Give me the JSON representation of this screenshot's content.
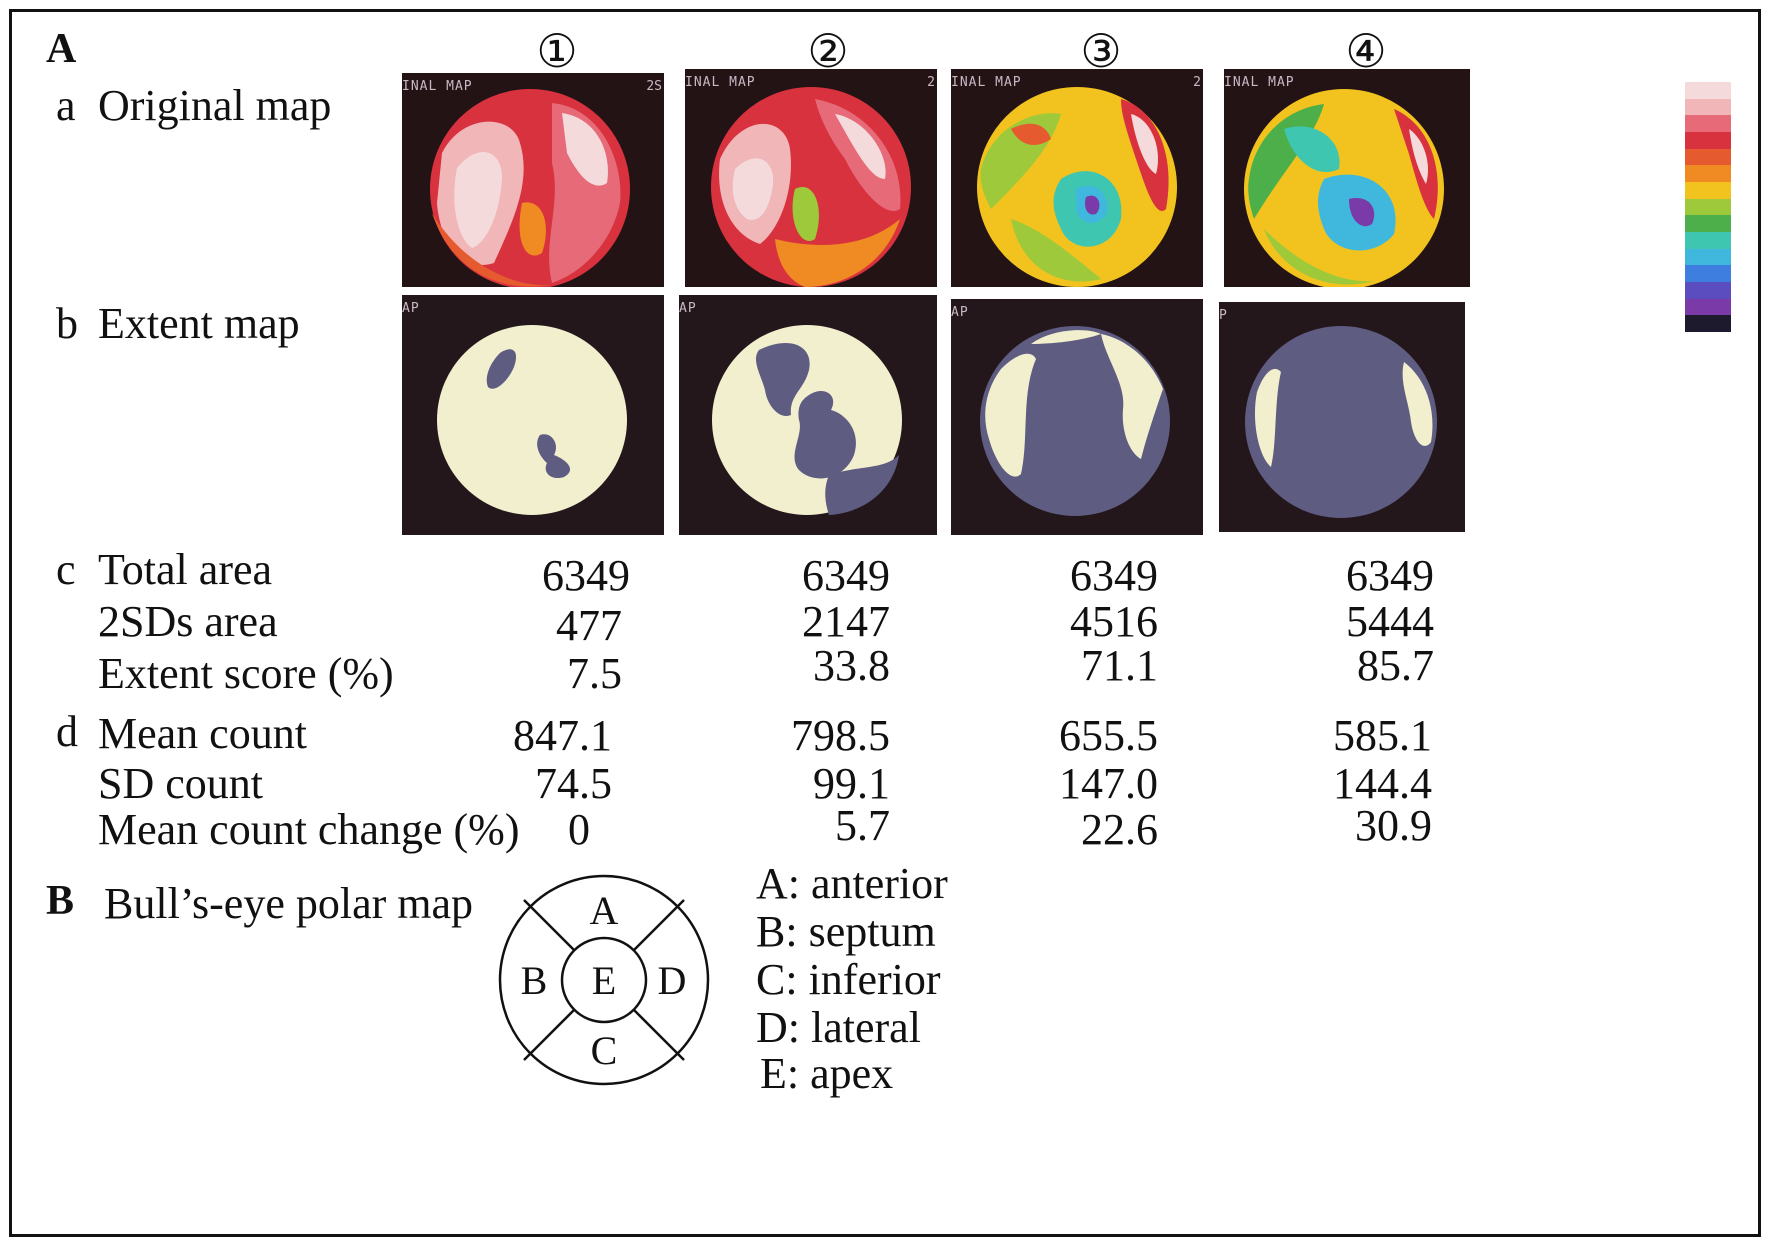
{
  "panels": {
    "A": "A",
    "B": "B"
  },
  "column_headers": [
    "①",
    "②",
    "③",
    "④"
  ],
  "rows": {
    "a": {
      "letter": "a",
      "label": "Original map"
    },
    "b": {
      "letter": "b",
      "label": "Extent map"
    }
  },
  "tile_texts": {
    "original": [
      "INAL MAP",
      "INAL MAP",
      "INAL MAP",
      "INAL MAP"
    ],
    "original_corner": [
      "2S",
      "2",
      "2",
      ""
    ],
    "extent": [
      "AP",
      "AP",
      "AP",
      "P"
    ]
  },
  "section_c": {
    "letter": "c",
    "rows": [
      {
        "label": "Total area",
        "values": [
          "6349",
          "6349",
          "6349",
          "6349"
        ]
      },
      {
        "label": "2SDs  area",
        "values": [
          "477",
          "2147",
          "4516",
          "5444"
        ]
      },
      {
        "label": "Extent score (%)",
        "values": [
          "7.5",
          "33.8",
          "71.1",
          "85.7"
        ]
      }
    ]
  },
  "section_d": {
    "letter": "d",
    "rows": [
      {
        "label": "Mean count",
        "values": [
          "847.1",
          "798.5",
          "655.5",
          "585.1"
        ]
      },
      {
        "label": "SD count",
        "values": [
          "74.5",
          "99.1",
          "147.0",
          "144.4"
        ]
      },
      {
        "label": "Mean count change (%)",
        "values": [
          "0",
          "5.7",
          "22.6",
          "30.9"
        ]
      }
    ]
  },
  "bullseye": {
    "title": "Bull’s-eye polar map",
    "segments": {
      "anterior": "A",
      "septum": "B",
      "inferior": "C",
      "lateral": "D",
      "apex": "E"
    },
    "legend": [
      "A: anterior",
      "B: septum",
      "C: inferior",
      "D: lateral",
      "E: apex"
    ]
  },
  "colors": {
    "frame": "#111111",
    "tile_background": "#241315",
    "extent_normal": "#f2efcf",
    "extent_abnormal": "#5f5c82",
    "colorbar": [
      "#f4dada",
      "#f0b6b8",
      "#e66a78",
      "#d8323e",
      "#e55a2e",
      "#f08a22",
      "#f2c31e",
      "#9dc93a",
      "#4caf4a",
      "#3fc6b0",
      "#40b8de",
      "#3d7ede",
      "#5b4cc0",
      "#7a3aa8",
      "#1e1a2e"
    ]
  }
}
